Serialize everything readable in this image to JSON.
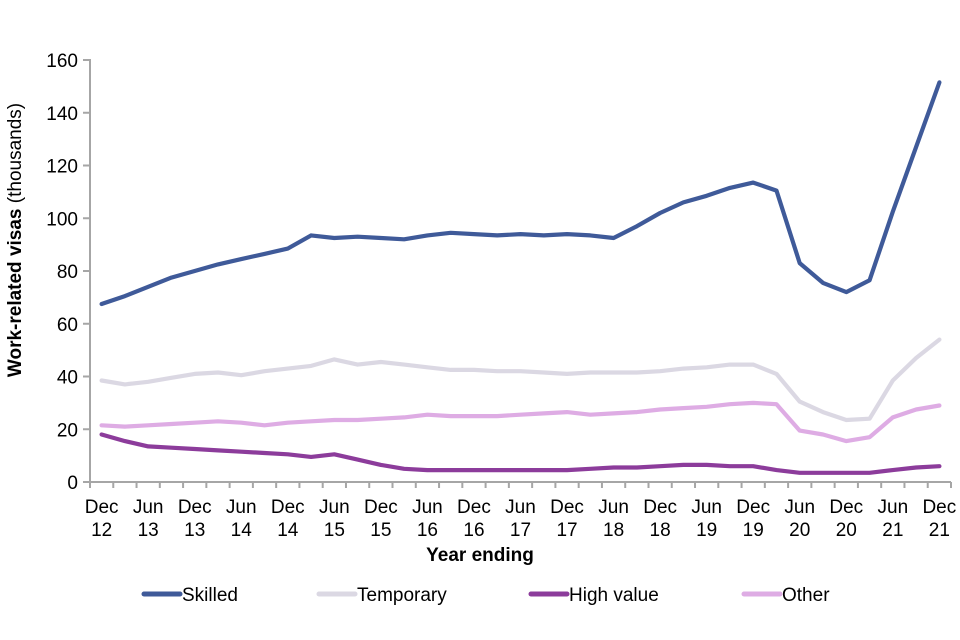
{
  "chart_data": {
    "type": "line",
    "title": "",
    "ylabel": "Work-related visas (thousands)",
    "ylabel_bold": "Work-related visas",
    "ylabel_rest": " (thousands)",
    "xlabel": "Year ending",
    "ylim": [
      0,
      160
    ],
    "ytick_step": 20,
    "yticks": [
      0,
      20,
      40,
      60,
      80,
      100,
      120,
      140,
      160
    ],
    "grid": false,
    "legend_position": "bottom",
    "axis_color": "#A6A6A6",
    "text_color": "#000000",
    "background": "#FFFFFF",
    "categories": [
      "Dec 12",
      "Mar 13",
      "Jun 13",
      "Sep 13",
      "Dec 13",
      "Mar 14",
      "Jun 14",
      "Sep 14",
      "Dec 14",
      "Mar 15",
      "Jun 15",
      "Sep 15",
      "Dec 15",
      "Mar 16",
      "Jun 16",
      "Sep 16",
      "Dec 16",
      "Mar 17",
      "Jun 17",
      "Sep 17",
      "Dec 17",
      "Mar 18",
      "Jun 18",
      "Sep 18",
      "Dec 18",
      "Mar 19",
      "Jun 19",
      "Sep 19",
      "Dec 19",
      "Mar 20",
      "Jun 20",
      "Sep 20",
      "Dec 20",
      "Mar 21",
      "Jun 21",
      "Sep 21",
      "Dec 21"
    ],
    "x_axis_labels": [
      [
        "Dec",
        "12"
      ],
      [
        "Jun",
        "13"
      ],
      [
        "Dec",
        "13"
      ],
      [
        "Jun",
        "14"
      ],
      [
        "Dec",
        "14"
      ],
      [
        "Jun",
        "15"
      ],
      [
        "Dec",
        "15"
      ],
      [
        "Jun",
        "16"
      ],
      [
        "Dec",
        "16"
      ],
      [
        "Jun",
        "17"
      ],
      [
        "Dec",
        "17"
      ],
      [
        "Jun",
        "18"
      ],
      [
        "Dec",
        "18"
      ],
      [
        "Jun",
        "19"
      ],
      [
        "Dec",
        "19"
      ],
      [
        "Jun",
        "20"
      ],
      [
        "Dec",
        "20"
      ],
      [
        "Jun",
        "21"
      ],
      [
        "Dec",
        "21"
      ]
    ],
    "series": [
      {
        "name": "Skilled",
        "color": "#3F5A99",
        "values": [
          67.5,
          70.5,
          74,
          77.5,
          80,
          82.5,
          84.5,
          86.5,
          88.5,
          93.5,
          92.5,
          93,
          92.5,
          92,
          93.5,
          94.5,
          94,
          93.5,
          94,
          93.5,
          94,
          93.5,
          92.5,
          97,
          102,
          106,
          108.5,
          111.5,
          113.5,
          110.5,
          83,
          75.5,
          72,
          76.5,
          102.5,
          127,
          151.5
        ]
      },
      {
        "name": "Temporary",
        "color": "#DBD8E3",
        "values": [
          38.5,
          37,
          38,
          39.5,
          41,
          41.5,
          40.5,
          42,
          43,
          44,
          46.5,
          44.5,
          45.5,
          44.5,
          43.5,
          42.5,
          42.5,
          42,
          42,
          41.5,
          41,
          41.5,
          41.5,
          41.5,
          42,
          43,
          43.5,
          44.5,
          44.5,
          41,
          30.5,
          26.5,
          23.5,
          24,
          38.5,
          47,
          54
        ]
      },
      {
        "name": "High value",
        "color": "#8C3C9B",
        "values": [
          18,
          15.5,
          13.5,
          13,
          12.5,
          12,
          11.5,
          11,
          10.5,
          9.5,
          10.5,
          8.5,
          6.5,
          5,
          4.5,
          4.5,
          4.5,
          4.5,
          4.5,
          4.5,
          4.5,
          5,
          5.5,
          5.5,
          6,
          6.5,
          6.5,
          6,
          6,
          4.5,
          3.5,
          3.5,
          3.5,
          3.5,
          4.5,
          5.5,
          6
        ]
      },
      {
        "name": "Other",
        "color": "#DEACE4",
        "values": [
          21.5,
          21,
          21.5,
          22,
          22.5,
          23,
          22.5,
          21.5,
          22.5,
          23,
          23.5,
          23.5,
          24,
          24.5,
          25.5,
          25,
          25,
          25,
          25.5,
          26,
          26.5,
          25.5,
          26,
          26.5,
          27.5,
          28,
          28.5,
          29.5,
          30,
          29.5,
          19.5,
          18,
          15.5,
          17,
          24.5,
          27.5,
          29
        ]
      }
    ]
  }
}
